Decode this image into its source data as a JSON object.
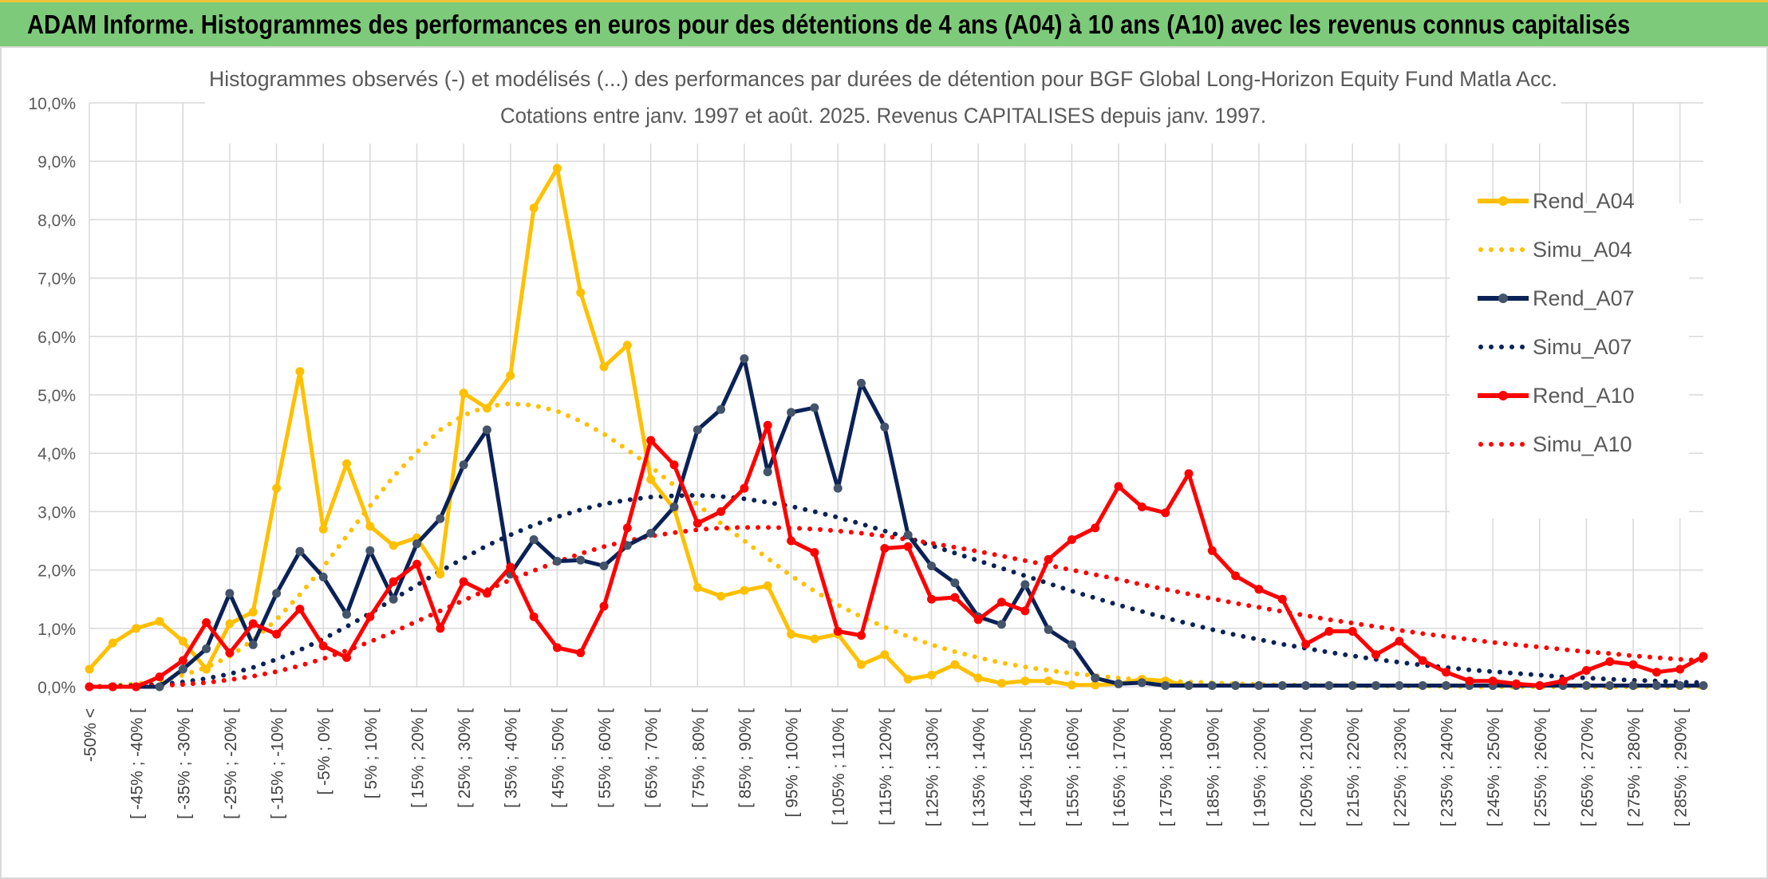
{
  "header": {
    "title": "ADAM Informe. Histogrammes des performances en euros pour des détentions de 4 ans (A04) à 10 ans (A10) avec les revenus connus capitalisés"
  },
  "chart_data": {
    "type": "line",
    "title": "Histogrammes observés (-) et modélisés (...) des performances par durées de détention pour BGF Global Long-Horizon Equity Fund Matla Acc.",
    "subtitle": "Cotations entre janv. 1997 et août. 2025. Revenus CAPITALISES depuis janv. 1997.",
    "xlabel": "",
    "ylabel": "",
    "ylim": [
      0,
      10
    ],
    "yticks": [
      "0,0%",
      "1,0%",
      "2,0%",
      "3,0%",
      "4,0%",
      "5,0%",
      "6,0%",
      "7,0%",
      "8,0%",
      "9,0%",
      "10,0%"
    ],
    "grid": true,
    "legend_position": "top-right",
    "categories": [
      "-50% <",
      "[ -50% ; -45% [",
      "[ -45% ; -40% [",
      "[ -40% ; -35% [",
      "[ -35% ; -30% [",
      "[ -30% ; -25% [",
      "[ -25% ; -20% [",
      "[ -20% ; -15% [",
      "[ -15% ; -10% [",
      "[ -10% ; -5% [",
      "[ -5% ; 0% [",
      "[ 0% ; 5% [",
      "[ 5% ; 10% [",
      "[ 10% ; 15% [",
      "[ 15% ; 20% [",
      "[ 20% ; 25% [",
      "[ 25% ; 30% [",
      "[ 30% ; 35% [",
      "[ 35% ; 40% [",
      "[ 40% ; 45% [",
      "[ 45% ; 50% [",
      "[ 50% ; 55% [",
      "[ 55% ; 60% [",
      "[ 60% ; 65% [",
      "[ 65% ; 70% [",
      "[ 70% ; 75% [",
      "[ 75% ; 80% [",
      "[ 80% ; 85% [",
      "[ 85% ; 90% [",
      "[ 90% ; 95% [",
      "[ 95% ; 100% [",
      "[ 100% ; 105% [",
      "[ 105% ; 110% [",
      "[ 110% ; 115% [",
      "[ 115% ; 120% [",
      "[ 120% ; 125% [",
      "[ 125% ; 130% [",
      "[ 130% ; 135% [",
      "[ 135% ; 140% [",
      "[ 140% ; 145% [",
      "[ 145% ; 150% [",
      "[ 150% ; 155% [",
      "[ 155% ; 160% [",
      "[ 160% ; 165% [",
      "[ 165% ; 170% [",
      "[ 170% ; 175% [",
      "[ 175% ; 180% [",
      "[ 180% ; 185% [",
      "[ 185% ; 190% [",
      "[ 190% ; 195% [",
      "[ 195% ; 200% [",
      "[ 200% ; 205% [",
      "[ 205% ; 210% [",
      "[ 210% ; 215% [",
      "[ 215% ; 220% [",
      "[ 220% ; 225% [",
      "[ 225% ; 230% [",
      "[ 230% ; 235% [",
      "[ 235% ; 240% [",
      "[ 240% ; 245% [",
      "[ 245% ; 250% [",
      "[ 250% ; 255% [",
      "[ 255% ; 260% [",
      "[ 260% ; 265% [",
      "[ 265% ; 270% [",
      "[ 270% ; 275% [",
      "[ 275% ; 280% [",
      "[ 280% ; 285% [",
      "[ 285% ; 290% [",
      "[ 290% ; 295% ["
    ],
    "visible_tick_labels": [
      "-50% <",
      "[ -45% ; -40% [",
      "[ -35% ; -30% [",
      "[ -25% ; -20% [",
      "[ -15% ; -10% [",
      "[ -5% ; 0% [",
      "[ 5% ; 10% [",
      "[ 15% ; 20% [",
      "[ 25% ; 30% [",
      "[ 35% ; 40% [",
      "[ 45% ; 50% [",
      "[ 55% ; 60% [",
      "[ 65% ; 70% [",
      "[ 75% ; 80% [",
      "[ 85% ; 90% [",
      "[ 95% ; 100% [",
      "[ 105% ; 110% [",
      "[ 115% ; 120% [",
      "[ 125% ; 130% [",
      "[ 135% ; 140% [",
      "[ 145% ; 150% [",
      "[ 155% ; 160% [",
      "[ 165% ; 170% [",
      "[ 175% ; 180% [",
      "[ 185% ; 190% [",
      "[ 195% ; 200% [",
      "[ 205% ; 210% [",
      "[ 215% ; 220% [",
      "[ 225% ; 230% [",
      "[ 235% ; 240% [",
      "[ 245% ; 250% [",
      "[ 255% ; 260% [",
      "[ 265% ; 270% [",
      "[ 275% ; 280% [",
      "[ 285% ; 290% ["
    ],
    "series": [
      {
        "name": "Rend_A04",
        "style": "solid",
        "color": "#ffc000",
        "values": [
          0.3,
          0.75,
          1.0,
          1.12,
          0.78,
          0.3,
          1.08,
          1.28,
          3.4,
          5.4,
          2.7,
          3.82,
          2.75,
          2.42,
          2.55,
          1.93,
          5.03,
          4.77,
          5.33,
          8.2,
          8.88,
          6.75,
          5.48,
          5.85,
          3.55,
          3.05,
          1.7,
          1.55,
          1.65,
          1.73,
          0.9,
          0.82,
          0.9,
          0.38,
          0.55,
          0.13,
          0.2,
          0.38,
          0.15,
          0.06,
          0.1,
          0.1,
          0.03,
          0.03,
          0.05,
          0.13,
          0.1,
          0.02,
          0.02,
          0.02,
          0.02,
          0.02,
          0.02,
          0.02,
          0.02,
          0.02,
          0.02,
          0.02,
          0.02,
          0.02,
          0.02,
          0.02,
          0.02,
          0.02,
          0.02,
          0.02,
          0.02,
          0.02,
          0.02,
          0.02
        ]
      },
      {
        "name": "Simu_A04",
        "style": "dotted",
        "color": "#ffc000",
        "values": [
          0.0,
          0.02,
          0.05,
          0.1,
          0.2,
          0.33,
          0.52,
          0.8,
          1.15,
          1.58,
          2.05,
          2.58,
          3.1,
          3.6,
          4.02,
          4.4,
          4.65,
          4.8,
          4.85,
          4.82,
          4.72,
          4.55,
          4.33,
          4.06,
          3.77,
          3.45,
          3.12,
          2.8,
          2.5,
          2.2,
          1.9,
          1.64,
          1.4,
          1.2,
          1.02,
          0.86,
          0.72,
          0.6,
          0.5,
          0.41,
          0.34,
          0.28,
          0.23,
          0.19,
          0.15,
          0.12,
          0.1,
          0.08,
          0.07,
          0.05,
          0.04,
          0.03,
          0.03,
          0.02,
          0.02,
          0.01,
          0.01,
          0.01,
          0.01,
          0.0,
          0.0,
          0.0,
          0.0,
          0.0,
          0.0,
          0.0,
          0.0,
          0.0,
          0.0,
          0.0
        ]
      },
      {
        "name": "Rend_A07",
        "style": "solid",
        "color": "#0b2256",
        "values": [
          0.0,
          0.0,
          0.0,
          0.0,
          0.3,
          0.65,
          1.6,
          0.72,
          1.6,
          2.32,
          1.88,
          1.24,
          2.33,
          1.5,
          2.45,
          2.88,
          3.8,
          4.4,
          1.93,
          2.52,
          2.15,
          2.17,
          2.07,
          2.42,
          2.63,
          3.08,
          4.4,
          4.75,
          5.62,
          3.68,
          4.7,
          4.78,
          3.4,
          5.2,
          4.45,
          2.6,
          2.07,
          1.78,
          1.2,
          1.07,
          1.75,
          0.98,
          0.72,
          0.15,
          0.05,
          0.07,
          0.02,
          0.02,
          0.02,
          0.02,
          0.02,
          0.02,
          0.02,
          0.02,
          0.02,
          0.02,
          0.02,
          0.02,
          0.02,
          0.02,
          0.02,
          0.02,
          0.02,
          0.02,
          0.02,
          0.02,
          0.02,
          0.02,
          0.02,
          0.02
        ]
      },
      {
        "name": "Simu_A07",
        "style": "dotted",
        "color": "#0b2256",
        "values": [
          0.0,
          0.01,
          0.02,
          0.04,
          0.08,
          0.14,
          0.22,
          0.33,
          0.47,
          0.63,
          0.82,
          1.03,
          1.26,
          1.5,
          1.74,
          1.98,
          2.2,
          2.42,
          2.6,
          2.77,
          2.91,
          3.03,
          3.13,
          3.2,
          3.25,
          3.27,
          3.28,
          3.26,
          3.22,
          3.16,
          3.09,
          3.0,
          2.9,
          2.79,
          2.67,
          2.55,
          2.42,
          2.29,
          2.16,
          2.03,
          1.9,
          1.77,
          1.64,
          1.52,
          1.4,
          1.29,
          1.18,
          1.08,
          0.98,
          0.89,
          0.81,
          0.73,
          0.66,
          0.59,
          0.53,
          0.47,
          0.42,
          0.37,
          0.33,
          0.29,
          0.26,
          0.23,
          0.2,
          0.17,
          0.15,
          0.13,
          0.11,
          0.1,
          0.08,
          0.07
        ]
      },
      {
        "name": "Rend_A10",
        "style": "solid",
        "color": "#ff0000",
        "values": [
          0.0,
          0.0,
          0.0,
          0.17,
          0.45,
          1.1,
          0.58,
          1.08,
          0.9,
          1.33,
          0.7,
          0.5,
          1.2,
          1.8,
          2.1,
          1.0,
          1.8,
          1.6,
          2.05,
          1.2,
          0.67,
          0.58,
          1.38,
          2.72,
          4.22,
          3.8,
          2.8,
          3.0,
          3.4,
          4.48,
          2.5,
          2.3,
          0.95,
          0.88,
          2.37,
          2.4,
          1.5,
          1.53,
          1.15,
          1.45,
          1.3,
          2.18,
          2.52,
          2.72,
          3.43,
          3.08,
          2.98,
          3.65,
          2.33,
          1.9,
          1.67,
          1.5,
          0.73,
          0.95,
          0.95,
          0.55,
          0.78,
          0.45,
          0.25,
          0.1,
          0.1,
          0.05,
          0.02,
          0.1,
          0.28,
          0.43,
          0.38,
          0.25,
          0.3,
          0.52
        ]
      },
      {
        "name": "Simu_A10",
        "style": "dotted",
        "color": "#ff0000",
        "values": [
          0.0,
          0.0,
          0.01,
          0.02,
          0.04,
          0.07,
          0.12,
          0.18,
          0.26,
          0.36,
          0.48,
          0.62,
          0.77,
          0.94,
          1.12,
          1.3,
          1.48,
          1.66,
          1.83,
          1.99,
          2.14,
          2.28,
          2.4,
          2.5,
          2.58,
          2.64,
          2.69,
          2.72,
          2.73,
          2.73,
          2.72,
          2.7,
          2.67,
          2.63,
          2.58,
          2.52,
          2.46,
          2.39,
          2.32,
          2.24,
          2.16,
          2.08,
          2.0,
          1.92,
          1.84,
          1.75,
          1.67,
          1.59,
          1.51,
          1.43,
          1.36,
          1.29,
          1.22,
          1.15,
          1.09,
          1.03,
          0.97,
          0.91,
          0.86,
          0.81,
          0.76,
          0.72,
          0.68,
          0.64,
          0.6,
          0.57,
          0.53,
          0.5,
          0.47,
          0.45
        ]
      }
    ]
  }
}
